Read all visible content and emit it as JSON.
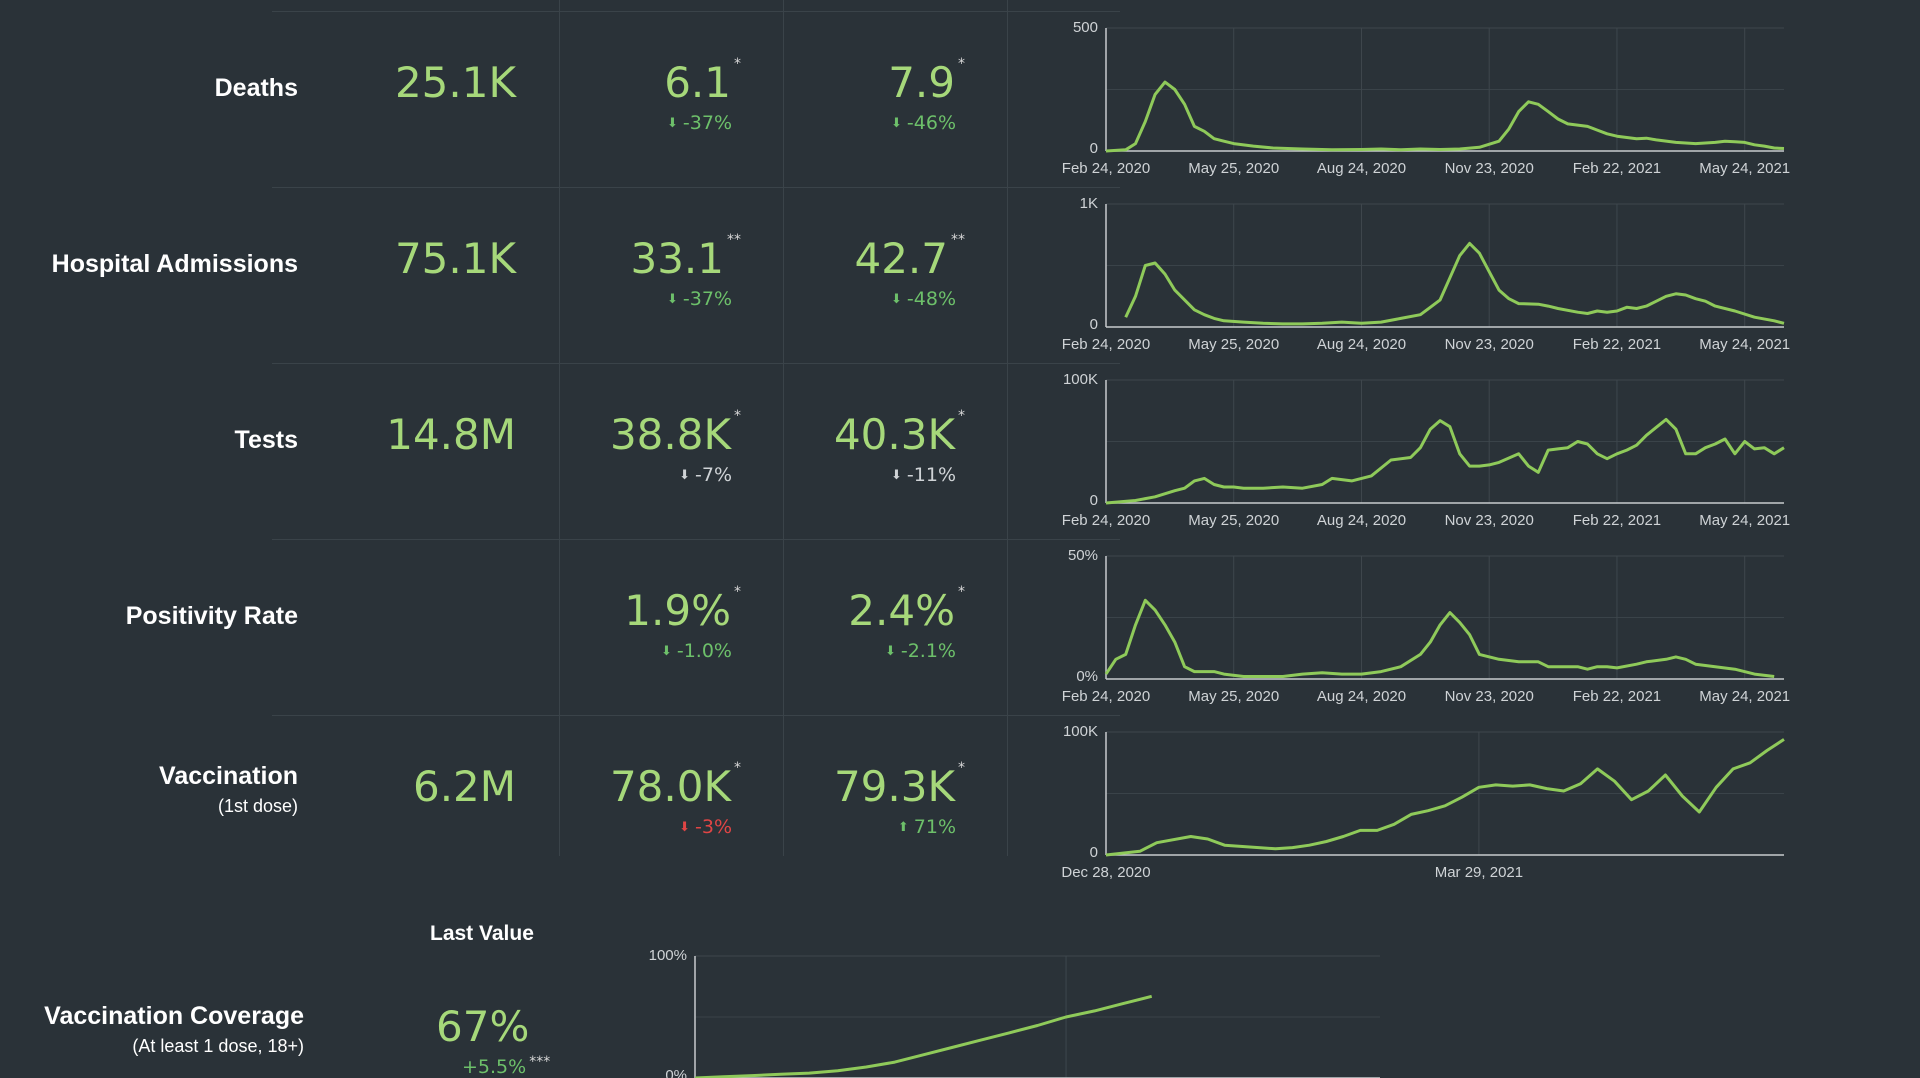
{
  "rows": [
    {
      "label": "Deaths",
      "total": "25.1K",
      "v1": "6.1",
      "v1_mark": "*",
      "c1": "-37%",
      "c1_dir": "down",
      "c1_color": "green",
      "v2": "7.9",
      "v2_mark": "*",
      "c2": "-46%",
      "c2_dir": "down",
      "c2_color": "green"
    },
    {
      "label": "Hospital Admissions",
      "total": "75.1K",
      "v1": "33.1",
      "v1_mark": "**",
      "c1": "-37%",
      "c1_dir": "down",
      "c1_color": "green",
      "v2": "42.7",
      "v2_mark": "**",
      "c2": "-48%",
      "c2_dir": "down",
      "c2_color": "green"
    },
    {
      "label": "Tests",
      "total": "14.8M",
      "v1": "38.8K",
      "v1_mark": "*",
      "c1": "-7%",
      "c1_dir": "down",
      "c1_color": "grey",
      "v2": "40.3K",
      "v2_mark": "*",
      "c2": "-11%",
      "c2_dir": "down",
      "c2_color": "grey"
    },
    {
      "label": "Positivity Rate",
      "total": "",
      "v1": "1.9%",
      "v1_mark": "*",
      "c1": "-1.0%",
      "c1_dir": "down",
      "c1_color": "green",
      "v2": "2.4%",
      "v2_mark": "*",
      "c2": "-2.1%",
      "c2_dir": "down",
      "c2_color": "green"
    },
    {
      "label": "Vaccination",
      "sublabel": "(1st dose)",
      "total": "6.2M",
      "v1": "78.0K",
      "v1_mark": "*",
      "c1": "-3%",
      "c1_dir": "down",
      "c1_color": "red",
      "v2": "79.3K",
      "v2_mark": "*",
      "c2": "71%",
      "c2_dir": "up",
      "c2_color": "green"
    }
  ],
  "coverage": {
    "heading": "Last Value",
    "label": "Vaccination Coverage",
    "sublabel": "(At least 1 dose, 18+)",
    "value": "67%",
    "change": "+5.5%",
    "change_mark": "***"
  },
  "colors": {
    "line": "#8fca5a",
    "value": "#a6d87a",
    "green": "#6dc06a",
    "red": "#e04545",
    "grey": "#cfd3d6"
  },
  "chart_data": [
    {
      "type": "line",
      "name": "Deaths",
      "x_ticks": [
        "Feb 24, 2020",
        "May 25, 2020",
        "Aug 24, 2020",
        "Nov 23, 2020",
        "Feb 22, 2021",
        "May 24, 2021"
      ],
      "y_ticks": [
        "0",
        "500"
      ],
      "ylim": [
        0,
        500
      ],
      "x_range": [
        0,
        67
      ],
      "points": [
        [
          0,
          0
        ],
        [
          2,
          5
        ],
        [
          3,
          30
        ],
        [
          4,
          120
        ],
        [
          5,
          230
        ],
        [
          6,
          280
        ],
        [
          7,
          250
        ],
        [
          8,
          190
        ],
        [
          9,
          100
        ],
        [
          10,
          80
        ],
        [
          11,
          50
        ],
        [
          12,
          40
        ],
        [
          13,
          30
        ],
        [
          15,
          20
        ],
        [
          17,
          12
        ],
        [
          20,
          8
        ],
        [
          23,
          5
        ],
        [
          26,
          6
        ],
        [
          28,
          8
        ],
        [
          30,
          5
        ],
        [
          32,
          8
        ],
        [
          34,
          6
        ],
        [
          36,
          8
        ],
        [
          38,
          15
        ],
        [
          40,
          40
        ],
        [
          41,
          90
        ],
        [
          42,
          160
        ],
        [
          43,
          200
        ],
        [
          44,
          190
        ],
        [
          45,
          160
        ],
        [
          46,
          130
        ],
        [
          47,
          110
        ],
        [
          49,
          100
        ],
        [
          50,
          85
        ],
        [
          51,
          70
        ],
        [
          52,
          60
        ],
        [
          54,
          50
        ],
        [
          55,
          52
        ],
        [
          56,
          45
        ],
        [
          58,
          35
        ],
        [
          60,
          30
        ],
        [
          62,
          35
        ],
        [
          63,
          40
        ],
        [
          64,
          38
        ],
        [
          65,
          35
        ],
        [
          66,
          25
        ],
        [
          67,
          20
        ],
        [
          68,
          12
        ],
        [
          69,
          10
        ]
      ]
    },
    {
      "type": "line",
      "name": "Hospital Admissions",
      "x_ticks": [
        "Feb 24, 2020",
        "May 25, 2020",
        "Aug 24, 2020",
        "Nov 23, 2020",
        "Feb 22, 2021",
        "May 24, 2021"
      ],
      "y_ticks": [
        "0",
        "1K"
      ],
      "ylim": [
        0,
        1000
      ],
      "points": [
        [
          2,
          80
        ],
        [
          3,
          250
        ],
        [
          4,
          500
        ],
        [
          5,
          520
        ],
        [
          6,
          430
        ],
        [
          7,
          300
        ],
        [
          8,
          220
        ],
        [
          9,
          140
        ],
        [
          10,
          100
        ],
        [
          11,
          70
        ],
        [
          12,
          50
        ],
        [
          14,
          40
        ],
        [
          16,
          30
        ],
        [
          18,
          25
        ],
        [
          20,
          25
        ],
        [
          22,
          30
        ],
        [
          24,
          40
        ],
        [
          26,
          30
        ],
        [
          28,
          40
        ],
        [
          30,
          70
        ],
        [
          32,
          100
        ],
        [
          33,
          160
        ],
        [
          34,
          220
        ],
        [
          35,
          400
        ],
        [
          36,
          580
        ],
        [
          37,
          680
        ],
        [
          38,
          600
        ],
        [
          39,
          450
        ],
        [
          40,
          300
        ],
        [
          41,
          230
        ],
        [
          42,
          190
        ],
        [
          44,
          185
        ],
        [
          45,
          170
        ],
        [
          46,
          150
        ],
        [
          48,
          120
        ],
        [
          49,
          110
        ],
        [
          50,
          130
        ],
        [
          51,
          120
        ],
        [
          52,
          130
        ],
        [
          53,
          160
        ],
        [
          54,
          150
        ],
        [
          55,
          170
        ],
        [
          56,
          210
        ],
        [
          57,
          250
        ],
        [
          58,
          270
        ],
        [
          59,
          260
        ],
        [
          60,
          230
        ],
        [
          61,
          210
        ],
        [
          62,
          170
        ],
        [
          64,
          130
        ],
        [
          66,
          80
        ],
        [
          68,
          50
        ],
        [
          69,
          30
        ]
      ]
    },
    {
      "type": "line",
      "name": "Tests",
      "x_ticks": [
        "Feb 24, 2020",
        "May 25, 2020",
        "Aug 24, 2020",
        "Nov 23, 2020",
        "Feb 22, 2021",
        "May 24, 2021"
      ],
      "y_ticks": [
        "0",
        "100K"
      ],
      "ylim": [
        0,
        100000
      ],
      "points": [
        [
          0,
          0
        ],
        [
          3,
          2000
        ],
        [
          5,
          5000
        ],
        [
          7,
          10000
        ],
        [
          8,
          12000
        ],
        [
          9,
          18000
        ],
        [
          10,
          20000
        ],
        [
          11,
          15000
        ],
        [
          12,
          13000
        ],
        [
          13,
          13000
        ],
        [
          14,
          12000
        ],
        [
          16,
          12000
        ],
        [
          18,
          13000
        ],
        [
          20,
          12000
        ],
        [
          22,
          15000
        ],
        [
          23,
          20000
        ],
        [
          24,
          19000
        ],
        [
          25,
          18000
        ],
        [
          27,
          22000
        ],
        [
          29,
          35000
        ],
        [
          31,
          37000
        ],
        [
          32,
          45000
        ],
        [
          33,
          60000
        ],
        [
          34,
          67000
        ],
        [
          35,
          62000
        ],
        [
          36,
          40000
        ],
        [
          37,
          30000
        ],
        [
          38,
          30000
        ],
        [
          39,
          31000
        ],
        [
          40,
          33000
        ],
        [
          42,
          40000
        ],
        [
          43,
          30000
        ],
        [
          44,
          25000
        ],
        [
          45,
          43000
        ],
        [
          46,
          44000
        ],
        [
          47,
          45000
        ],
        [
          48,
          50000
        ],
        [
          49,
          48000
        ],
        [
          50,
          40000
        ],
        [
          51,
          36000
        ],
        [
          52,
          40000
        ],
        [
          53,
          43000
        ],
        [
          54,
          47000
        ],
        [
          55,
          55000
        ],
        [
          57,
          68000
        ],
        [
          58,
          60000
        ],
        [
          59,
          40000
        ],
        [
          60,
          40000
        ],
        [
          61,
          45000
        ],
        [
          62,
          48000
        ],
        [
          63,
          52000
        ],
        [
          64,
          40000
        ],
        [
          65,
          50000
        ],
        [
          66,
          44000
        ],
        [
          67,
          45000
        ],
        [
          68,
          40000
        ],
        [
          69,
          45000
        ]
      ]
    },
    {
      "type": "line",
      "name": "Positivity Rate",
      "x_ticks": [
        "Feb 24, 2020",
        "May 25, 2020",
        "Aug 24, 2020",
        "Nov 23, 2020",
        "Feb 22, 2021",
        "May 24, 2021"
      ],
      "y_ticks": [
        "0%",
        "50%"
      ],
      "ylim": [
        0,
        50
      ],
      "points": [
        [
          0,
          2
        ],
        [
          1,
          8
        ],
        [
          2,
          10
        ],
        [
          3,
          22
        ],
        [
          4,
          32
        ],
        [
          5,
          28
        ],
        [
          6,
          22
        ],
        [
          7,
          15
        ],
        [
          8,
          5
        ],
        [
          9,
          3
        ],
        [
          10,
          3
        ],
        [
          11,
          3
        ],
        [
          12,
          2
        ],
        [
          14,
          1
        ],
        [
          16,
          1
        ],
        [
          18,
          1
        ],
        [
          20,
          2
        ],
        [
          22,
          2.5
        ],
        [
          24,
          2
        ],
        [
          26,
          2
        ],
        [
          28,
          3
        ],
        [
          30,
          5
        ],
        [
          32,
          10
        ],
        [
          33,
          15
        ],
        [
          34,
          22
        ],
        [
          35,
          27
        ],
        [
          36,
          23
        ],
        [
          37,
          18
        ],
        [
          38,
          10
        ],
        [
          40,
          8
        ],
        [
          42,
          7
        ],
        [
          44,
          7
        ],
        [
          45,
          5
        ],
        [
          47,
          5
        ],
        [
          48,
          5
        ],
        [
          49,
          4
        ],
        [
          50,
          5
        ],
        [
          51,
          5
        ],
        [
          52,
          4.5
        ],
        [
          54,
          6
        ],
        [
          55,
          7
        ],
        [
          57,
          8
        ],
        [
          58,
          9
        ],
        [
          59,
          8
        ],
        [
          60,
          6
        ],
        [
          62,
          5
        ],
        [
          64,
          4
        ],
        [
          66,
          2
        ],
        [
          68,
          1
        ]
      ]
    },
    {
      "type": "line",
      "name": "Vaccination (1st dose)",
      "x_ticks": [
        "Dec 28, 2020",
        "Mar 29, 2021"
      ],
      "y_ticks": [
        "0",
        "100K"
      ],
      "ylim": [
        0,
        100000
      ],
      "points": [
        [
          0,
          0
        ],
        [
          2,
          3000
        ],
        [
          3,
          10000
        ],
        [
          5,
          15000
        ],
        [
          6,
          13000
        ],
        [
          7,
          8000
        ],
        [
          9,
          6000
        ],
        [
          10,
          5000
        ],
        [
          11,
          6000
        ],
        [
          12,
          8000
        ],
        [
          13,
          11000
        ],
        [
          14,
          15000
        ],
        [
          15,
          20000
        ],
        [
          16,
          20000
        ],
        [
          17,
          25000
        ],
        [
          18,
          33000
        ],
        [
          19,
          36000
        ],
        [
          20,
          40000
        ],
        [
          21,
          47000
        ],
        [
          22,
          55000
        ],
        [
          23,
          57000
        ],
        [
          24,
          56000
        ],
        [
          25,
          57000
        ],
        [
          26,
          54000
        ],
        [
          27,
          52000
        ],
        [
          28,
          58000
        ],
        [
          29,
          70000
        ],
        [
          30,
          60000
        ],
        [
          31,
          45000
        ],
        [
          32,
          52000
        ],
        [
          33,
          65000
        ],
        [
          34,
          48000
        ],
        [
          35,
          35000
        ],
        [
          36,
          55000
        ],
        [
          37,
          70000
        ],
        [
          38,
          75000
        ],
        [
          39,
          85000
        ],
        [
          40,
          94000
        ]
      ]
    },
    {
      "type": "line",
      "name": "Vaccination Coverage",
      "y_ticks": [
        "0%",
        "100%"
      ],
      "ylim": [
        0,
        100
      ],
      "points": [
        [
          0,
          0
        ],
        [
          5,
          1
        ],
        [
          10,
          2
        ],
        [
          15,
          3
        ],
        [
          20,
          4
        ],
        [
          25,
          6
        ],
        [
          30,
          9
        ],
        [
          35,
          13
        ],
        [
          40,
          19
        ],
        [
          45,
          25
        ],
        [
          50,
          31
        ],
        [
          55,
          37
        ],
        [
          60,
          43
        ],
        [
          65,
          50
        ],
        [
          70,
          55
        ],
        [
          75,
          61
        ],
        [
          80,
          67
        ]
      ]
    }
  ]
}
